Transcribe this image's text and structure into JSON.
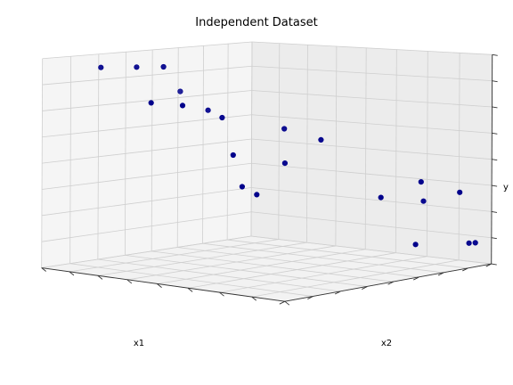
{
  "chart_data": {
    "type": "scatter",
    "projection": "3d",
    "title": "Independent Dataset",
    "xlabel": "x1",
    "ylabel": "x2",
    "zlabel": "y",
    "grid": true,
    "tick_labels_shown": false,
    "point_color": "#00008b",
    "points": [
      {
        "x1": 0.84,
        "x2": 0.1,
        "y": 0.95
      },
      {
        "x1": 0.76,
        "x2": 0.18,
        "y": 0.95
      },
      {
        "x1": 0.7,
        "x2": 0.24,
        "y": 0.95
      },
      {
        "x1": 0.6,
        "x2": 0.22,
        "y": 0.82
      },
      {
        "x1": 0.84,
        "x2": 0.32,
        "y": 0.8
      },
      {
        "x1": 0.74,
        "x2": 0.36,
        "y": 0.78
      },
      {
        "x1": 0.6,
        "x2": 0.34,
        "y": 0.74
      },
      {
        "x1": 0.6,
        "x2": 0.4,
        "y": 0.71
      },
      {
        "x1": 0.44,
        "x2": 0.52,
        "y": 0.65
      },
      {
        "x1": 0.38,
        "x2": 0.62,
        "y": 0.6
      },
      {
        "x1": 0.66,
        "x2": 0.5,
        "y": 0.55
      },
      {
        "x1": 0.46,
        "x2": 0.54,
        "y": 0.49
      },
      {
        "x1": 0.64,
        "x2": 0.52,
        "y": 0.4
      },
      {
        "x1": 0.64,
        "x2": 0.58,
        "y": 0.37
      },
      {
        "x1": 0.18,
        "x2": 0.86,
        "y": 0.4
      },
      {
        "x1": 0.1,
        "x2": 0.95,
        "y": 0.35
      },
      {
        "x1": 0.14,
        "x2": 0.84,
        "y": 0.3
      },
      {
        "x1": 0.28,
        "x2": 0.78,
        "y": 0.33
      },
      {
        "x1": 0.05,
        "x2": 0.95,
        "y": 0.1
      },
      {
        "x1": 0.03,
        "x2": 0.96,
        "y": 0.1
      },
      {
        "x1": 0.26,
        "x2": 0.9,
        "y": 0.12
      }
    ]
  }
}
